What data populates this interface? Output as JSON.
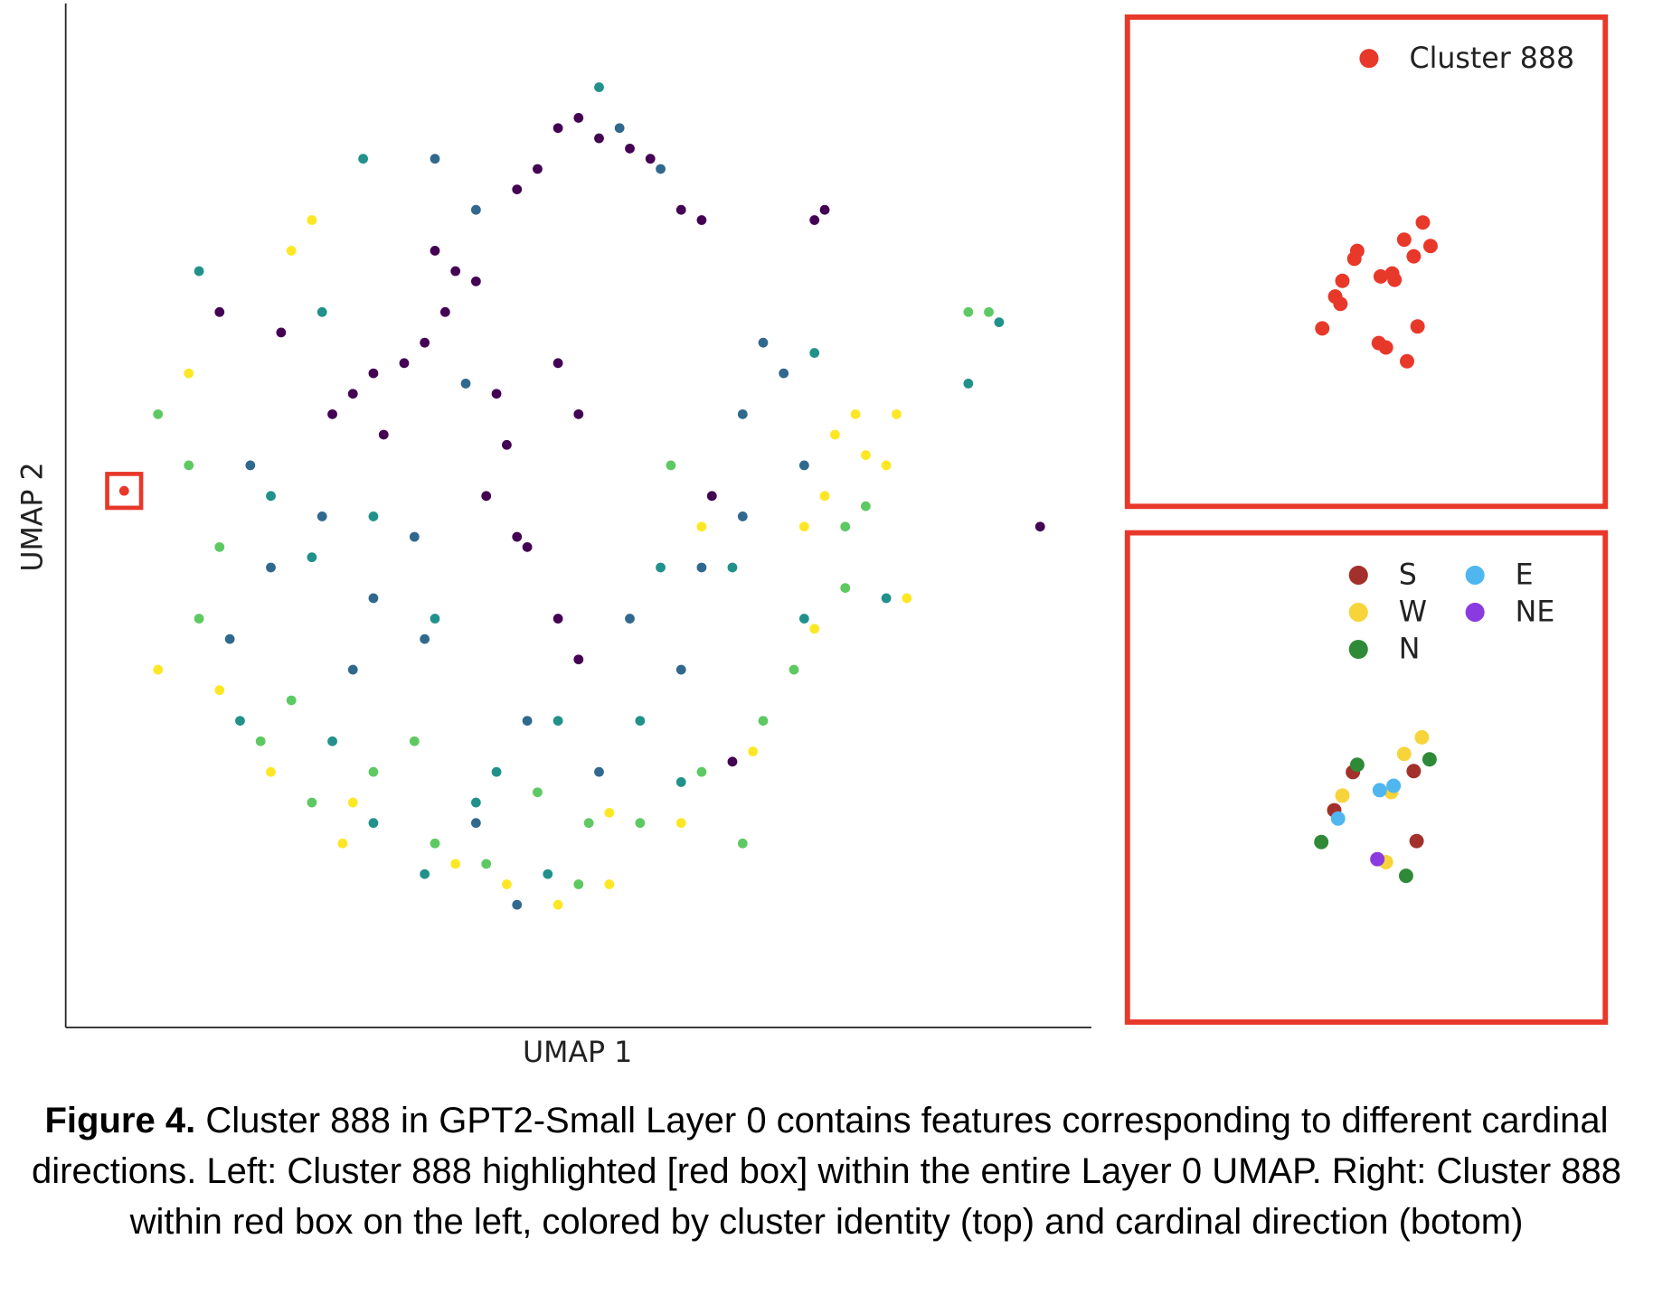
{
  "chart_data": [
    {
      "type": "scatter",
      "xlabel": "UMAP 1",
      "ylabel": "UMAP 2",
      "xlim": [
        0,
        100
      ],
      "ylim": [
        0,
        100
      ],
      "xticks": [],
      "yticks": [],
      "series": [
        {
          "color": "#440154",
          "x": [
            48,
            50,
            52,
            55,
            57,
            46,
            44,
            60,
            62,
            36,
            38,
            40,
            37,
            35,
            33,
            30,
            28,
            42,
            43,
            41,
            44,
            45,
            31,
            26,
            15,
            21,
            48,
            50,
            73,
            74,
            95,
            65,
            63,
            50,
            48
          ],
          "values": [
            88,
            89,
            87,
            86,
            85,
            84,
            82,
            80,
            79,
            76,
            74,
            73,
            70,
            67,
            65,
            64,
            62,
            62,
            57,
            52,
            48,
            47,
            58,
            60,
            70,
            68,
            65,
            60,
            79,
            80,
            49,
            26,
            52,
            36,
            40
          ]
        },
        {
          "color": "#31688e",
          "x": [
            40,
            36,
            54,
            58,
            39,
            25,
            20,
            18,
            30,
            35,
            45,
            55,
            60,
            62,
            66,
            68,
            70,
            28,
            34,
            16,
            52,
            40,
            44,
            72,
            66
          ],
          "values": [
            80,
            85,
            88,
            84,
            63,
            50,
            45,
            55,
            42,
            38,
            30,
            40,
            35,
            45,
            60,
            67,
            64,
            35,
            48,
            38,
            25,
            20,
            12,
            55,
            50
          ]
        },
        {
          "color": "#21918c",
          "x": [
            13,
            25,
            52,
            29,
            20,
            24,
            30,
            36,
            48,
            56,
            58,
            73,
            88,
            91,
            80,
            60,
            40,
            47,
            30,
            17,
            26,
            72,
            65,
            42,
            35
          ],
          "values": [
            74,
            70,
            92,
            85,
            52,
            46,
            50,
            40,
            30,
            30,
            45,
            66,
            63,
            69,
            42,
            24,
            22,
            15,
            20,
            30,
            28,
            40,
            45,
            25,
            15
          ]
        },
        {
          "color": "#5ec962",
          "x": [
            9,
            12,
            13,
            22,
            30,
            36,
            41,
            50,
            56,
            62,
            68,
            71,
            76,
            76,
            88,
            90,
            46,
            51,
            24,
            19,
            66,
            34,
            78,
            59,
            15
          ],
          "values": [
            60,
            55,
            40,
            32,
            25,
            18,
            16,
            14,
            20,
            25,
            30,
            35,
            43,
            49,
            70,
            70,
            23,
            20,
            22,
            28,
            18,
            28,
            51,
            55,
            47
          ]
        },
        {
          "color": "#fde725",
          "x": [
            24,
            22,
            12,
            9,
            15,
            20,
            27,
            38,
            43,
            48,
            53,
            60,
            67,
            73,
            72,
            74,
            75,
            78,
            80,
            77,
            81,
            82,
            53,
            28,
            62
          ],
          "values": [
            79,
            76,
            64,
            35,
            33,
            25,
            18,
            16,
            14,
            12,
            14,
            20,
            27,
            39,
            49,
            52,
            58,
            56,
            55,
            60,
            60,
            42,
            21,
            22,
            49
          ]
        },
        {
          "color": "#e8382a",
          "x": [
            5.7
          ],
          "values": [
            52.5
          ]
        }
      ]
    },
    {
      "type": "scatter",
      "xlim": [
        0,
        100
      ],
      "ylim": [
        0,
        100
      ],
      "xticks": [],
      "yticks": [],
      "legend": "upper right",
      "series": [
        {
          "name": "Cluster 888",
          "color": "#e8382a",
          "x": [
            61.9,
            63.5,
            58.0,
            60.0,
            48.2,
            47.6,
            45.1,
            43.6,
            44.7,
            53.1,
            55.5,
            56.0,
            40.9,
            60.8,
            52.7,
            54.2,
            58.6
          ],
          "values": [
            57.9,
            53.1,
            54.4,
            51.0,
            52.1,
            50.5,
            46.0,
            42.8,
            41.3,
            46.9,
            47.5,
            46.2,
            36.3,
            36.7,
            33.3,
            32.4,
            29.6
          ]
        }
      ]
    },
    {
      "type": "scatter",
      "xlim": [
        0,
        100
      ],
      "ylim": [
        0,
        100
      ],
      "xticks": [],
      "yticks": [],
      "legend": "upper right",
      "series": [
        {
          "name": "S",
          "color": "#a3302a",
          "x": [
            47.3,
            43.4,
            60.0,
            60.6
          ],
          "values": [
            51.1,
            43.3,
            51.3,
            37.0
          ]
        },
        {
          "name": "W",
          "color": "#f7d43a",
          "x": [
            61.7,
            58.0,
            45.1,
            55.3,
            54.2
          ],
          "values": [
            58.2,
            54.8,
            46.3,
            47.0,
            32.7
          ]
        },
        {
          "name": "N",
          "color": "#2e8a37",
          "x": [
            48.2,
            63.3,
            40.7,
            58.4
          ],
          "values": [
            52.6,
            53.7,
            36.8,
            29.9
          ]
        },
        {
          "name": "E",
          "color": "#4fb6f0",
          "x": [
            52.9,
            55.8,
            44.2
          ],
          "values": [
            47.4,
            48.3,
            41.6
          ]
        },
        {
          "name": "NE",
          "color": "#8a3be0",
          "x": [
            52.4
          ],
          "values": [
            33.3
          ]
        }
      ]
    }
  ],
  "caption": {
    "label": "Figure 4.",
    "text": "Cluster 888 in GPT2-Small Layer 0 contains features corresponding to different cardinal directions. Left: Cluster 888 highlighted [red box] within the entire Layer 0 UMAP. Right: Cluster 888 within red box on the left, colored by cluster identity (top) and cardinal direction (botom)"
  }
}
